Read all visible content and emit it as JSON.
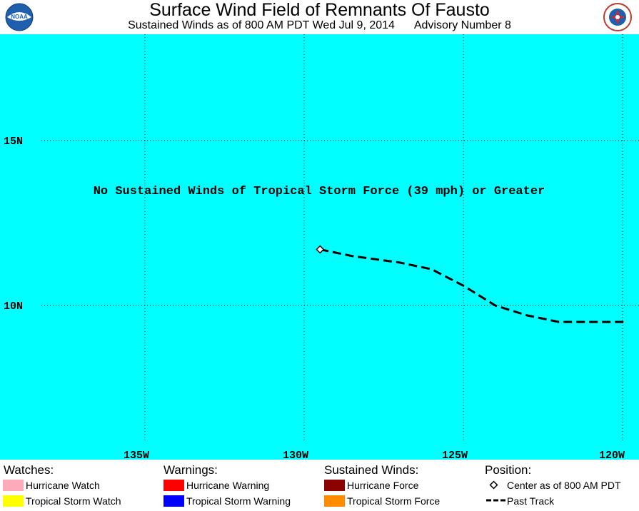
{
  "header": {
    "title": "Surface Wind Field of Remnants Of Fausto",
    "subtitle_time": "Sustained Winds as of 800 AM PDT Wed Jul 9, 2014",
    "subtitle_advisory": "Advisory Number 8"
  },
  "logos": {
    "left": "noaa-logo",
    "right": "national-weather-service-logo",
    "right_text": "NATIONAL WEATHER SERVICE"
  },
  "map": {
    "ocean_color": "#00ffff",
    "lat_labels": [
      "15N",
      "10N"
    ],
    "lon_labels": [
      "135W",
      "130W",
      "125W",
      "120W"
    ],
    "message": "No Sustained Winds of Tropical Storm Force (39 mph) or Greater",
    "center": {
      "lon": -129.5,
      "lat": 11.7
    },
    "past_track": [
      {
        "lon": -129.5,
        "lat": 11.7
      },
      {
        "lon": -128.5,
        "lat": 11.5
      },
      {
        "lon": -127.0,
        "lat": 11.3
      },
      {
        "lon": -126.0,
        "lat": 11.1
      },
      {
        "lon": -125.0,
        "lat": 10.6
      },
      {
        "lon": -124.0,
        "lat": 10.0
      },
      {
        "lon": -123.0,
        "lat": 9.7
      },
      {
        "lon": -122.0,
        "lat": 9.5
      },
      {
        "lon": -121.0,
        "lat": 9.5
      },
      {
        "lon": -119.9,
        "lat": 9.5
      }
    ]
  },
  "legend": {
    "watches": {
      "heading": "Watches:",
      "items": [
        {
          "label": "Hurricane Watch",
          "color": "#ffaabb"
        },
        {
          "label": "Tropical Storm Watch",
          "color": "#ffff00"
        }
      ]
    },
    "warnings": {
      "heading": "Warnings:",
      "items": [
        {
          "label": "Hurricane Warning",
          "color": "#ff0000"
        },
        {
          "label": "Tropical Storm Warning",
          "color": "#0000ff"
        }
      ]
    },
    "winds": {
      "heading": "Sustained Winds:",
      "items": [
        {
          "label": "Hurricane Force",
          "color": "#8b0000"
        },
        {
          "label": "Tropical Storm Force",
          "color": "#ff8c00"
        }
      ]
    },
    "position": {
      "heading": "Position:",
      "center_label": "Center as of 800 AM PDT",
      "track_label": "Past Track"
    }
  }
}
